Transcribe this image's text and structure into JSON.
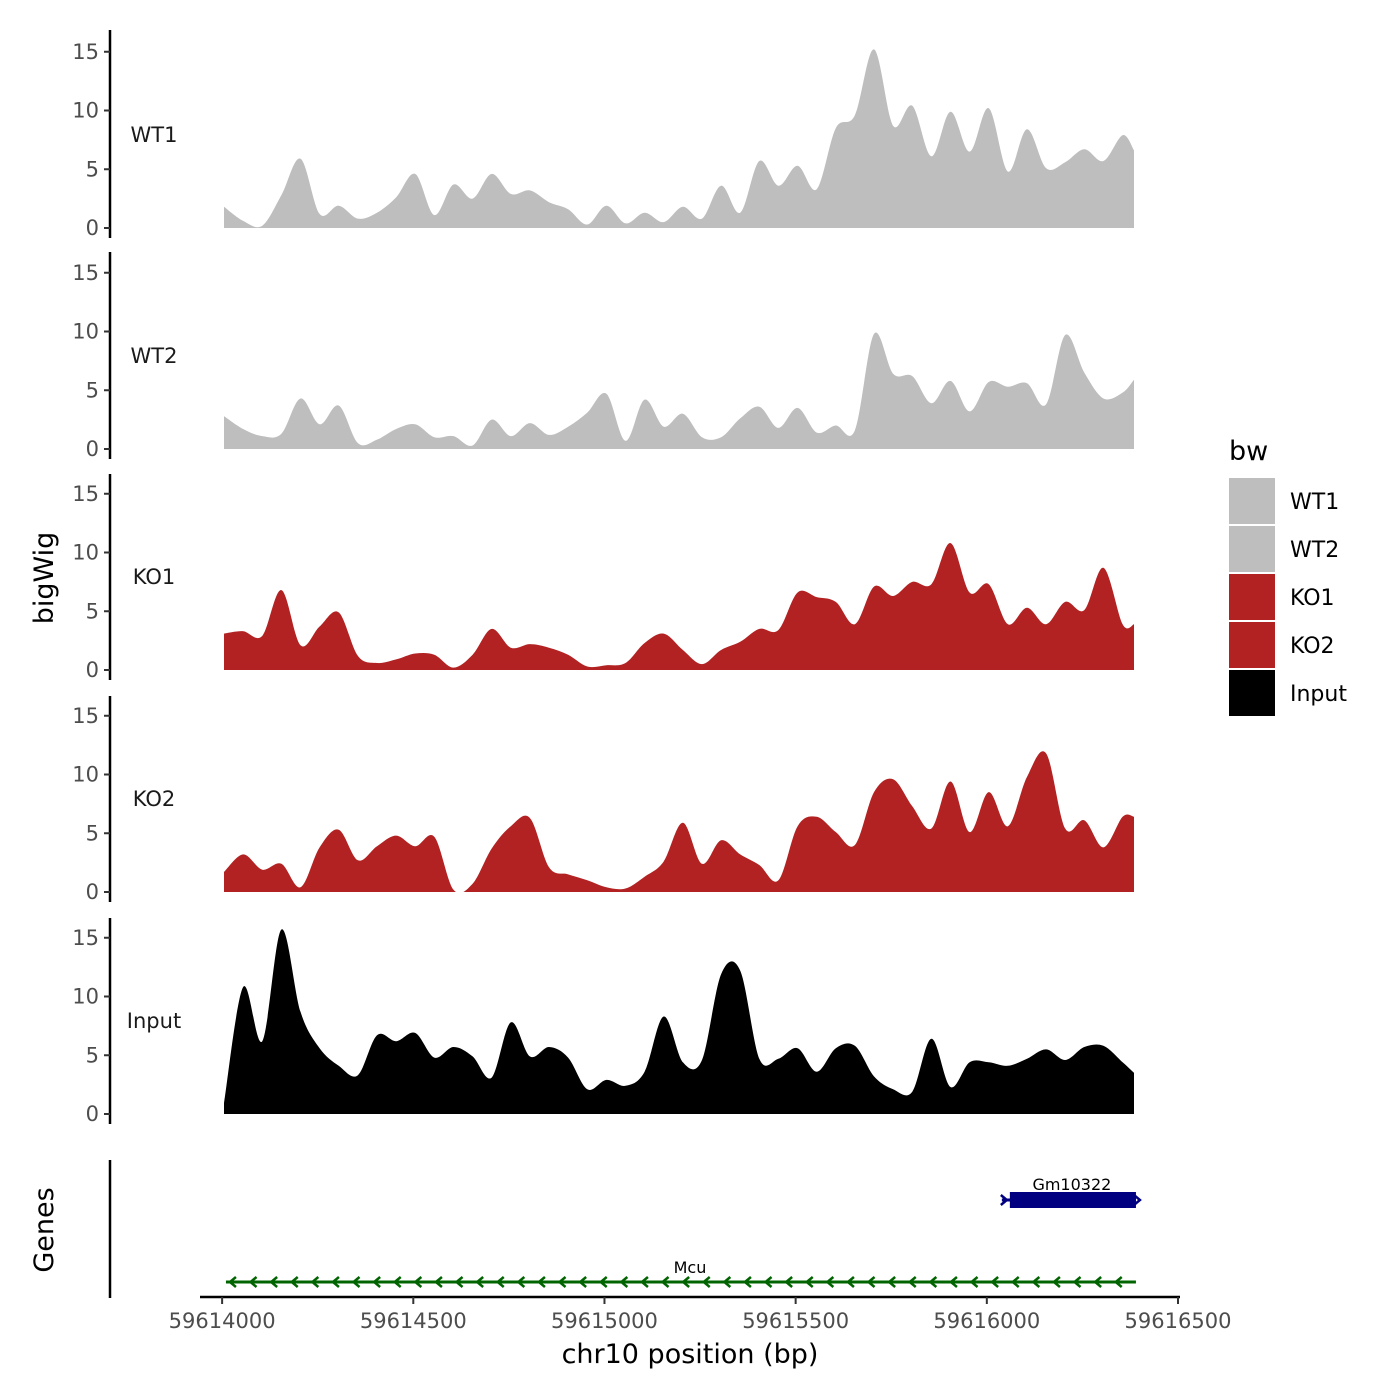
{
  "chart_data": {
    "type": "area",
    "title": "",
    "xlabel": "chr10 position (bp)",
    "ylabel": "bigWig",
    "genes_label": "Genes",
    "xlim": [
      59613950,
      59616500
    ],
    "ylim": [
      0,
      16
    ],
    "x_ticks": [
      59614000,
      59614500,
      59615000,
      59615500,
      59616000,
      59616500
    ],
    "x_tick_labels": [
      "59614000",
      "59614500",
      "59615000",
      "59615500",
      "59616000",
      "59616500"
    ],
    "y_ticks": [
      0,
      5,
      10,
      15
    ],
    "y_tick_labels": [
      "0",
      "5",
      "10",
      "15"
    ],
    "legend": {
      "title": "bw",
      "position": "right",
      "entries": [
        {
          "label": "WT1",
          "color": "#bebebe"
        },
        {
          "label": "WT2",
          "color": "#bebebe"
        },
        {
          "label": "KO1",
          "color": "#b22222"
        },
        {
          "label": "KO2",
          "color": "#b22222"
        },
        {
          "label": "Input",
          "color": "#000000"
        }
      ]
    },
    "x": [
      59614005,
      59614055,
      59614105,
      59614155,
      59614205,
      59614255,
      59614305,
      59614355,
      59614405,
      59614455,
      59614505,
      59614555,
      59614605,
      59614655,
      59614705,
      59614755,
      59614805,
      59614855,
      59614905,
      59614955,
      59615005,
      59615055,
      59615105,
      59615155,
      59615205,
      59615255,
      59615305,
      59615355,
      59615405,
      59615455,
      59615505,
      59615555,
      59615605,
      59615655,
      59615705,
      59615755,
      59615805,
      59615855,
      59615905,
      59615955,
      59616005,
      59616055,
      59616105,
      59616155,
      59616205,
      59616255,
      59616305,
      59616355,
      59616385
    ],
    "series": [
      {
        "name": "WT1",
        "color": "#bebebe",
        "values": [
          1.8,
          0.6,
          0.2,
          2.8,
          5.9,
          1.2,
          1.9,
          0.8,
          1.3,
          2.6,
          4.6,
          1.1,
          3.7,
          2.5,
          4.6,
          2.9,
          3.2,
          2.2,
          1.6,
          0.3,
          1.9,
          0.4,
          1.3,
          0.5,
          1.8,
          0.8,
          3.6,
          1.3,
          5.7,
          3.6,
          5.3,
          3.3,
          8.5,
          9.6,
          15.2,
          8.7,
          10.4,
          6.1,
          9.9,
          6.5,
          10.2,
          4.8,
          8.4,
          5.1,
          5.6,
          6.7,
          5.7,
          7.9,
          6.6
        ]
      },
      {
        "name": "WT2",
        "color": "#bebebe",
        "values": [
          2.8,
          1.7,
          1.1,
          1.3,
          4.3,
          2.1,
          3.7,
          0.5,
          0.8,
          1.7,
          2.1,
          1.0,
          1.1,
          0.3,
          2.5,
          1.1,
          2.2,
          1.2,
          1.9,
          3.1,
          4.7,
          0.7,
          4.2,
          1.9,
          3.0,
          1.0,
          1.0,
          2.6,
          3.6,
          1.8,
          3.5,
          1.4,
          2.0,
          1.6,
          9.8,
          6.4,
          6.2,
          3.9,
          5.8,
          3.2,
          5.7,
          5.3,
          5.6,
          3.8,
          9.7,
          6.5,
          4.3,
          4.8,
          5.9
        ]
      },
      {
        "name": "KO1",
        "color": "#b22222",
        "values": [
          3.1,
          3.3,
          2.9,
          6.8,
          2.1,
          3.7,
          4.9,
          1.2,
          0.6,
          0.9,
          1.4,
          1.3,
          0.2,
          1.3,
          3.5,
          1.9,
          2.2,
          1.9,
          1.3,
          0.3,
          0.4,
          0.6,
          2.3,
          3.1,
          1.7,
          0.5,
          1.7,
          2.4,
          3.5,
          3.4,
          6.6,
          6.2,
          5.8,
          3.9,
          7.1,
          6.3,
          7.5,
          7.3,
          10.8,
          6.6,
          7.3,
          3.9,
          5.3,
          3.9,
          5.8,
          5.1,
          8.7,
          3.9,
          3.9
        ]
      },
      {
        "name": "KO2",
        "color": "#b22222",
        "values": [
          1.7,
          3.2,
          1.9,
          2.4,
          0.4,
          3.8,
          5.3,
          2.7,
          3.9,
          4.8,
          3.9,
          4.7,
          0.2,
          0.7,
          3.7,
          5.6,
          6.3,
          2.1,
          1.5,
          1.0,
          0.4,
          0.3,
          1.3,
          2.6,
          5.9,
          2.4,
          4.4,
          3.2,
          2.3,
          1.0,
          5.6,
          6.4,
          5.1,
          4.0,
          8.5,
          9.6,
          7.3,
          5.4,
          9.4,
          5.1,
          8.5,
          5.6,
          9.8,
          11.8,
          5.4,
          6.1,
          3.8,
          6.4,
          6.4
        ]
      },
      {
        "name": "Input",
        "color": "#000000",
        "values": [
          0.9,
          10.8,
          6.2,
          15.7,
          8.7,
          5.6,
          4.1,
          3.3,
          6.7,
          6.2,
          6.9,
          4.8,
          5.7,
          4.9,
          3.1,
          7.8,
          4.9,
          5.7,
          4.8,
          2.1,
          2.9,
          2.4,
          3.6,
          8.3,
          4.4,
          4.6,
          11.9,
          12.2,
          4.7,
          4.7,
          5.6,
          3.6,
          5.6,
          5.8,
          3.2,
          2.1,
          1.9,
          6.4,
          2.3,
          4.4,
          4.4,
          4.1,
          4.7,
          5.5,
          4.6,
          5.7,
          5.8,
          4.4,
          3.5
        ]
      }
    ],
    "genes": [
      {
        "name": "Gm10322",
        "start": 59616055,
        "end": 59616390,
        "strand": "+",
        "color": "#000080"
      },
      {
        "name": "Mcu",
        "start": 59614010,
        "end": 59616390,
        "strand": "-",
        "color": "#006400"
      }
    ]
  }
}
